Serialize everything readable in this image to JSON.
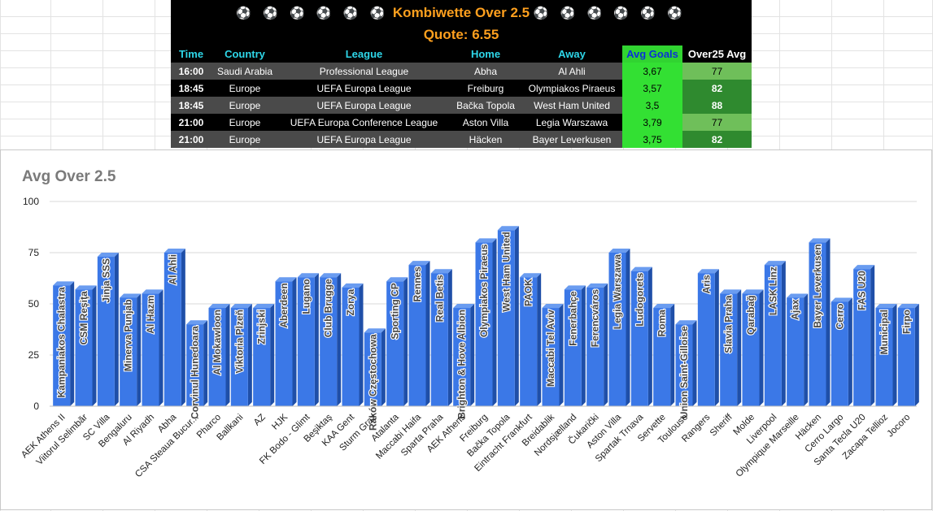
{
  "header": {
    "balls_left": "⚽ ⚽ ⚽ ⚽ ⚽ ⚽",
    "title": "Kombiwette Over 2.5",
    "balls_right": "⚽ ⚽ ⚽ ⚽ ⚽ ⚽",
    "quote": "Quote: 6.55"
  },
  "table": {
    "columns": [
      "Time",
      "Country",
      "League",
      "Home",
      "Away",
      "Avg Goals",
      "Over25 Avg"
    ],
    "rows": [
      {
        "time": "16:00",
        "country": "Saudi Arabia",
        "league": "Professional League",
        "home": "Abha",
        "away": "Al Ahli",
        "avg_goals": "3,67",
        "over25": "77"
      },
      {
        "time": "18:45",
        "country": "Europe",
        "league": "UEFA Europa League",
        "home": "Freiburg",
        "away": "Olympiakos Piraeus",
        "avg_goals": "3,57",
        "over25": "82"
      },
      {
        "time": "18:45",
        "country": "Europe",
        "league": "UEFA Europa League",
        "home": "Bačka Topola",
        "away": "West Ham United",
        "avg_goals": "3,5",
        "over25": "88"
      },
      {
        "time": "21:00",
        "country": "Europe",
        "league": "UEFA Europa Conference League",
        "home": "Aston Villa",
        "away": "Legia Warszawa",
        "avg_goals": "3,79",
        "over25": "77"
      },
      {
        "time": "21:00",
        "country": "Europe",
        "league": "UEFA Europa League",
        "home": "Häcken",
        "away": "Bayer Leverkusen",
        "avg_goals": "3,75",
        "over25": "82"
      }
    ]
  },
  "colors": {
    "bar": "#3b78e7",
    "bar_side": "#1f4fa8",
    "header_text": "#ffa01e",
    "avg_goals_bg": "#33e033"
  },
  "chart_data": {
    "type": "bar",
    "title": "Avg Over 2.5",
    "ylim": [
      0,
      100
    ],
    "yticks": [
      0,
      25,
      50,
      75,
      100
    ],
    "grid": true,
    "legend": "none",
    "categories": [
      "AEK Athens II",
      "Viitorul Selimbăr",
      "SC Villa",
      "Bengaluru",
      "Al Riyadh",
      "Abha",
      "CSA Steaua Bucur...",
      "Pharco",
      "Ballkani",
      "AZ",
      "HJK",
      "FK Bodo - Glimt",
      "Beşiktaş",
      "KAA Gent",
      "Sturm Graz",
      "Atalanta",
      "Maccabi Haifa",
      "Sparta Praha",
      "AEK Athens",
      "Freiburg",
      "Bačka Topola",
      "Eintracht Frankfurt",
      "Breidablik",
      "Nordsjælland",
      "Čukarički",
      "Aston Villa",
      "Spartak Trnava",
      "Servette",
      "Toulouse",
      "Rangers",
      "Sheriff",
      "Molde",
      "Liverpool",
      "Olympique Marseille",
      "Häcken",
      "Cerro Largo",
      "Santa Tecla U20",
      "Zacapa Tellioz",
      "Jocoro"
    ],
    "bar_labels": [
      "Kampaniakos Chalastra",
      "CSM Reşiţa",
      "Jinja SSS",
      "Minerva Punjab",
      "Al Hazm",
      "Al Ahli",
      "Corvinul Hunedoara",
      "Al Mokawloon",
      "Viktoria Plzeň",
      "Zrinjski",
      "Aberdeen",
      "Lugano",
      "Club Brugge",
      "Zorya",
      "Raków Częstochowa",
      "Sporting CP",
      "Rennes",
      "Real Betis",
      "Brighton & Hove Albion",
      "Olympiakos Piraeus",
      "West Ham United",
      "PAOK",
      "Maccabi Tel Aviv",
      "Fenerbahçe",
      "Ferencváros",
      "Legia Warszawa",
      "Ludogorets",
      "Roma",
      "Union Saint-Gilloise",
      "Aris",
      "Slavia Praha",
      "Qarabağ",
      "LASK Linz",
      "Ajax",
      "Bayer Leverkusen",
      "Cerro",
      "FAS U20",
      "Municipal",
      "Firpo"
    ],
    "values": [
      59,
      57,
      73,
      53,
      55,
      75,
      40,
      48,
      48,
      48,
      61,
      63,
      63,
      58,
      36,
      61,
      69,
      65,
      48,
      80,
      86,
      63,
      48,
      57,
      58,
      75,
      66,
      48,
      40,
      65,
      55,
      55,
      69,
      53,
      80,
      51,
      67,
      48,
      48
    ]
  }
}
